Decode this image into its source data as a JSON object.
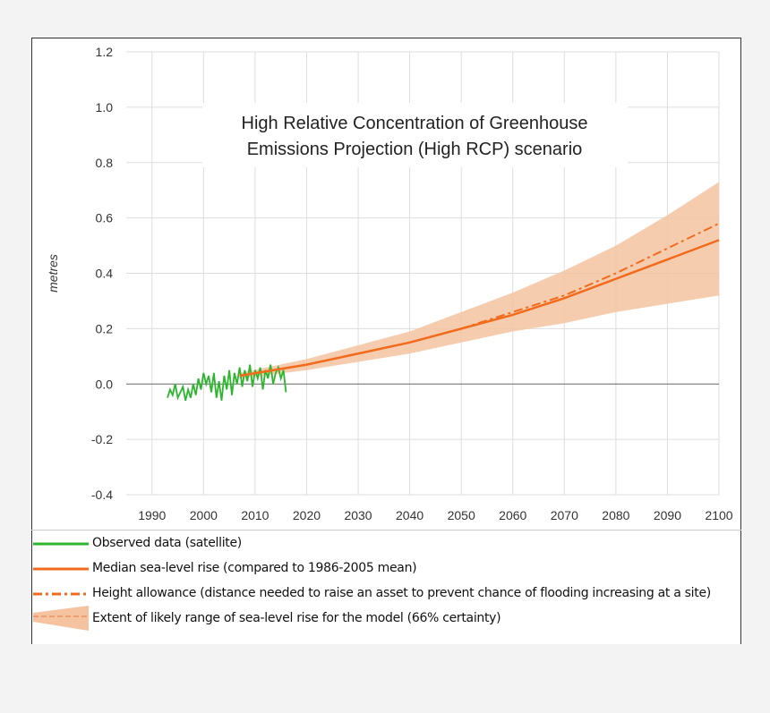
{
  "chart_data": {
    "type": "line",
    "title": "High Relative Concentration of Greenhouse Emissions Projection (High RCP) scenario",
    "title_lines": [
      "High Relative Concentration of Greenhouse",
      "Emissions Projection (High RCP) scenario"
    ],
    "ylabel": "metres",
    "xlabel": "",
    "xlim": [
      1985,
      2100
    ],
    "ylim": [
      -0.4,
      1.2
    ],
    "xticks": [
      1990,
      2000,
      2010,
      2020,
      2030,
      2040,
      2050,
      2060,
      2070,
      2080,
      2090,
      2100
    ],
    "yticks": [
      "1.2",
      "1.0",
      "0.8",
      "0.6",
      "0.4",
      "0.2",
      "0.0",
      "-0.2",
      "-0.4"
    ],
    "grid": true,
    "legend_position": "bottom",
    "colors": {
      "observed": "#2db52d",
      "median": "#f26b1d",
      "allowance": "#f26b1d",
      "band": "#f5c3a0"
    },
    "series": [
      {
        "name": "Observed data (satellite)",
        "x": [
          1993,
          1993.5,
          1994,
          1994.5,
          1995,
          1995.5,
          1996,
          1996.5,
          1997,
          1997.5,
          1998,
          1998.5,
          1999,
          1999.5,
          2000,
          2000.5,
          2001,
          2001.5,
          2002,
          2002.5,
          2003,
          2003.5,
          2004,
          2004.5,
          2005,
          2005.5,
          2006,
          2006.5,
          2007,
          2007.5,
          2008,
          2008.5,
          2009,
          2009.5,
          2010,
          2010.5,
          2011,
          2011.5,
          2012,
          2012.5,
          2013,
          2013.5,
          2014,
          2014.5,
          2015,
          2015.5,
          2016
        ],
        "y": [
          -0.05,
          -0.02,
          -0.04,
          0.0,
          -0.05,
          -0.03,
          -0.01,
          -0.06,
          -0.02,
          -0.05,
          0.0,
          -0.04,
          0.02,
          -0.02,
          0.04,
          0.0,
          0.03,
          -0.03,
          0.04,
          -0.05,
          0.01,
          -0.06,
          0.03,
          -0.02,
          0.05,
          -0.04,
          0.04,
          0.0,
          0.06,
          -0.01,
          0.05,
          0.01,
          0.07,
          -0.01,
          0.05,
          0.02,
          0.06,
          -0.02,
          0.05,
          0.02,
          0.07,
          0.0,
          0.04,
          0.06,
          0.02,
          0.05,
          -0.03
        ]
      },
      {
        "name": "Median sea-level rise (compared to 1986-2005 mean)",
        "x": [
          2007,
          2020,
          2030,
          2040,
          2050,
          2060,
          2070,
          2080,
          2090,
          2100
        ],
        "y": [
          0.03,
          0.07,
          0.11,
          0.15,
          0.2,
          0.25,
          0.31,
          0.38,
          0.45,
          0.52
        ]
      },
      {
        "name": "Height allowance (distance needed to raise an asset to prevent chance of flooding increasing at a site)",
        "x": [
          2007,
          2020,
          2030,
          2040,
          2050,
          2060,
          2070,
          2080,
          2090,
          2100
        ],
        "y": [
          0.03,
          0.07,
          0.11,
          0.15,
          0.2,
          0.26,
          0.32,
          0.4,
          0.49,
          0.58
        ]
      },
      {
        "name": "Extent of likely range of sea-level rise for the model (66% certainty)",
        "x": [
          2007,
          2020,
          2030,
          2040,
          2050,
          2060,
          2070,
          2080,
          2090,
          2100
        ],
        "low": [
          0.02,
          0.05,
          0.08,
          0.11,
          0.15,
          0.19,
          0.22,
          0.26,
          0.29,
          0.32
        ],
        "high": [
          0.04,
          0.09,
          0.14,
          0.19,
          0.26,
          0.33,
          0.41,
          0.5,
          0.61,
          0.73
        ]
      }
    ]
  }
}
